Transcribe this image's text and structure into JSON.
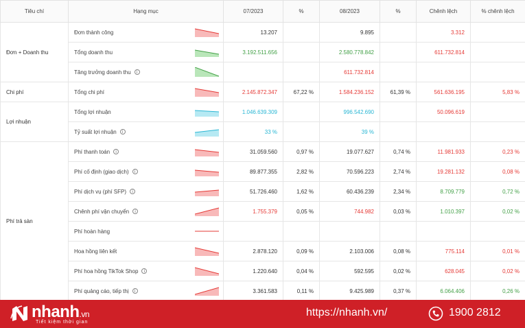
{
  "columns": {
    "group": "Tiêu chí",
    "item": "Hạng mục",
    "m1": "07/2023",
    "p1": "%",
    "m2": "08/2023",
    "p2": "%",
    "diff": "Chênh lệch",
    "pdiff": "% chênh lệch"
  },
  "groups": {
    "revenue": "Đơn + Doanh thu",
    "cost": "Chi phí",
    "profit": "Lợi nhuận",
    "fees": "Phí trả sàn"
  },
  "rows": [
    {
      "label": "Đơn thành công",
      "m1": "13.207",
      "p1": "",
      "m2": "9.895",
      "p2": "",
      "diff": "3.312",
      "pdiff": ""
    },
    {
      "label": "Tổng doanh thu",
      "m1": "3.192.511.656",
      "p1": "",
      "m2": "2.580.778.842",
      "p2": "",
      "diff": "611.732.814",
      "pdiff": ""
    },
    {
      "label": "Tăng trưởng doanh thu",
      "m1": "",
      "p1": "",
      "m2": "611.732.814",
      "p2": "",
      "diff": "",
      "pdiff": ""
    },
    {
      "label": "Tổng chi phí",
      "m1": "2.145.872.347",
      "p1": "67,22 %",
      "m2": "1.584.236.152",
      "p2": "61,39 %",
      "diff": "561.636.195",
      "pdiff": "5,83 %"
    },
    {
      "label": "Tổng lợi nhuận",
      "m1": "1.046.639.309",
      "p1": "",
      "m2": "996.542.690",
      "p2": "",
      "diff": "50.096.619",
      "pdiff": ""
    },
    {
      "label": "Tỷ suất lợi nhuận",
      "m1": "33 %",
      "p1": "",
      "m2": "39 %",
      "p2": "",
      "diff": "",
      "pdiff": ""
    },
    {
      "label": "Phí thanh toán",
      "m1": "31.059.560",
      "p1": "0,97 %",
      "m2": "19.077.627",
      "p2": "0,74 %",
      "diff": "11.981.933",
      "pdiff": "0,23 %"
    },
    {
      "label": "Phí cố định (giao dịch)",
      "m1": "89.877.355",
      "p1": "2,82 %",
      "m2": "70.596.223",
      "p2": "2,74 %",
      "diff": "19.281.132",
      "pdiff": "0,08 %"
    },
    {
      "label": "Phí dịch vụ (phí SFP)",
      "m1": "51.726.460",
      "p1": "1,62 %",
      "m2": "60.436.239",
      "p2": "2,34 %",
      "diff": "8.709.779",
      "pdiff": "0,72 %"
    },
    {
      "label": "Chênh phí vận chuyển",
      "m1": "1.755.379",
      "p1": "0,05 %",
      "m2": "744.982",
      "p2": "0,03 %",
      "diff": "1.010.397",
      "pdiff": "0,02 %"
    },
    {
      "label": "Phí hoàn hàng",
      "m1": "",
      "p1": "",
      "m2": "",
      "p2": "",
      "diff": "",
      "pdiff": ""
    },
    {
      "label": "Hoa hồng liên kết",
      "m1": "2.878.120",
      "p1": "0,09 %",
      "m2": "2.103.006",
      "p2": "0,08 %",
      "diff": "775.114",
      "pdiff": "0,01 %"
    },
    {
      "label": "Phí hoa hồng TikTok Shop",
      "m1": "1.220.640",
      "p1": "0,04 %",
      "m2": "592.595",
      "p2": "0,02 %",
      "diff": "628.045",
      "pdiff": "0,02 %"
    },
    {
      "label": "Phí quảng cáo, tiếp thị",
      "m1": "3.361.583",
      "p1": "0,11 %",
      "m2": "9.425.989",
      "p2": "0,37 %",
      "diff": "6.064.406",
      "pdiff": "0,26 %"
    }
  ],
  "colors": {
    "red": "#e53935",
    "green": "#43a047",
    "cyan": "#29b6d4",
    "footer": "#cf2027"
  },
  "footer": {
    "logo": "nhanh",
    "logo_suffix": ".vn",
    "tagline": "Tiết kiệm thời gian",
    "url": "https://nhanh.vn/",
    "phone": "1900 2812"
  }
}
